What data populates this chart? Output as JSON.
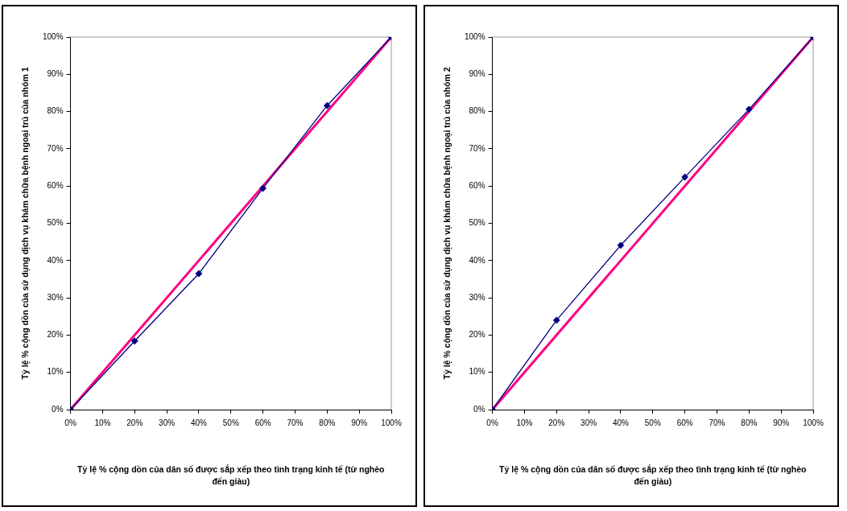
{
  "chart_data": [
    {
      "type": "line",
      "xlabel": "Tỷ lệ % cộng dồn của dân số được sắp xếp theo tình trạng kinh tế (từ nghèo đến giàu)",
      "ylabel": "Tỷ lệ % cộng dồn của sử dụng dịch vụ khám chữa bệnh ngoại trú của nhóm 1",
      "series": [
        {
          "color": "#000080",
          "marker": "diamond",
          "x": [
            0,
            20,
            40,
            60,
            80,
            100
          ],
          "values": [
            0,
            18.4,
            36.5,
            59.4,
            81.6,
            100
          ]
        },
        {
          "color": "#ff0080",
          "marker": "none",
          "x": [
            0,
            100
          ],
          "values": [
            0,
            100
          ]
        }
      ],
      "xlim": [
        0,
        100
      ],
      "ylim": [
        0,
        100
      ],
      "xticks": [
        {
          "value": 0,
          "label": "0%"
        },
        {
          "value": 10,
          "label": "10%"
        },
        {
          "value": 20,
          "label": "20%"
        },
        {
          "value": 30,
          "label": "30%"
        },
        {
          "value": 40,
          "label": "40%"
        },
        {
          "value": 50,
          "label": "50%"
        },
        {
          "value": 60,
          "label": "60%"
        },
        {
          "value": 70,
          "label": "70%"
        },
        {
          "value": 80,
          "label": "80%"
        },
        {
          "value": 90,
          "label": "90%"
        },
        {
          "value": 100,
          "label": "100%"
        }
      ],
      "yticks": [
        {
          "value": 0,
          "label": "0%"
        },
        {
          "value": 10,
          "label": "10%"
        },
        {
          "value": 20,
          "label": "20%"
        },
        {
          "value": 30,
          "label": "30%"
        },
        {
          "value": 40,
          "label": "40%"
        },
        {
          "value": 50,
          "label": "50%"
        },
        {
          "value": 60,
          "label": "60%"
        },
        {
          "value": 70,
          "label": "70%"
        },
        {
          "value": 80,
          "label": "80%"
        },
        {
          "value": 90,
          "label": "90%"
        },
        {
          "value": 100,
          "label": "100%"
        }
      ],
      "grid": false,
      "legend": false
    },
    {
      "type": "line",
      "xlabel": "Tỷ lệ % cộng dồn của dân số được sắp xếp theo tình trạng kinh tế (từ nghèo đến giàu)",
      "ylabel": "Tỷ lệ % cộng dồn của sử dụng dịch vụ khám chữa bệnh ngoại trú của nhóm 2",
      "series": [
        {
          "color": "#000080",
          "marker": "diamond",
          "x": [
            0,
            20,
            40,
            60,
            80,
            100
          ],
          "values": [
            0,
            24.0,
            44.1,
            62.4,
            80.6,
            100
          ]
        },
        {
          "color": "#ff0080",
          "marker": "none",
          "x": [
            0,
            100
          ],
          "values": [
            0,
            100
          ]
        }
      ],
      "xlim": [
        0,
        100
      ],
      "ylim": [
        0,
        100
      ],
      "xticks": [
        {
          "value": 0,
          "label": "0%"
        },
        {
          "value": 10,
          "label": "10%"
        },
        {
          "value": 20,
          "label": "20%"
        },
        {
          "value": 30,
          "label": "30%"
        },
        {
          "value": 40,
          "label": "40%"
        },
        {
          "value": 50,
          "label": "50%"
        },
        {
          "value": 60,
          "label": "60%"
        },
        {
          "value": 70,
          "label": "70%"
        },
        {
          "value": 80,
          "label": "80%"
        },
        {
          "value": 90,
          "label": "90%"
        },
        {
          "value": 100,
          "label": "100%"
        }
      ],
      "yticks": [
        {
          "value": 0,
          "label": "0%"
        },
        {
          "value": 10,
          "label": "10%"
        },
        {
          "value": 20,
          "label": "20%"
        },
        {
          "value": 30,
          "label": "30%"
        },
        {
          "value": 40,
          "label": "40%"
        },
        {
          "value": 50,
          "label": "50%"
        },
        {
          "value": 60,
          "label": "60%"
        },
        {
          "value": 70,
          "label": "70%"
        },
        {
          "value": 80,
          "label": "80%"
        },
        {
          "value": 90,
          "label": "90%"
        },
        {
          "value": 100,
          "label": "100%"
        }
      ],
      "grid": false,
      "legend": false
    }
  ]
}
